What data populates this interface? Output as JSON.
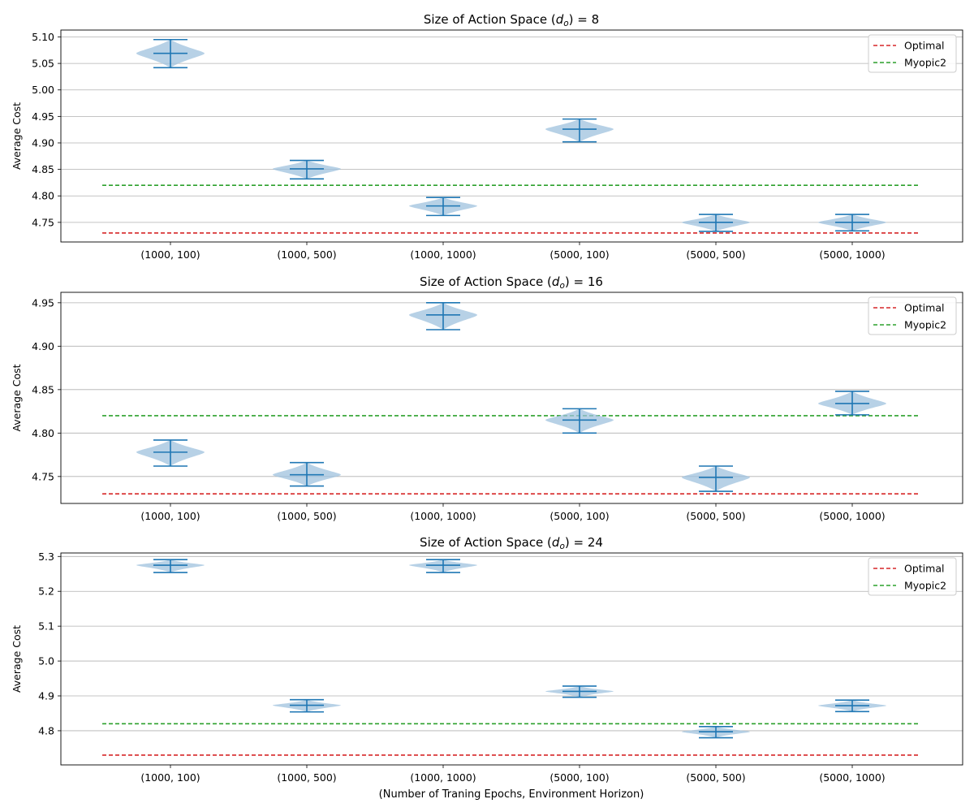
{
  "figure": {
    "xlabel": "(Number of Traning Epochs, Environment Horizon)"
  },
  "chart_data": [
    {
      "type": "violin",
      "title_prefix": "Size of Action Space (",
      "title_symbol": "d",
      "title_subscript": "o",
      "title_suffix": ") = 8",
      "ylabel": "Average Cost",
      "ylim": [
        4.713,
        5.113
      ],
      "yticks": [
        "4.75",
        "4.80",
        "4.85",
        "4.90",
        "4.95",
        "5.00",
        "5.05",
        "5.10"
      ],
      "grid": "horizontal",
      "legend_position": "top-right",
      "categories": [
        "(1000, 100)",
        "(1000, 500)",
        "(1000, 1000)",
        "(5000, 100)",
        "(5000, 500)",
        "(5000, 1000)"
      ],
      "distributions": [
        {
          "min": 5.042,
          "median": 5.069,
          "max": 5.095,
          "mode": 5.069,
          "spread": 0.7
        },
        {
          "min": 4.832,
          "median": 4.851,
          "max": 4.867,
          "mode": 4.851,
          "spread": 0.7
        },
        {
          "min": 4.763,
          "median": 4.781,
          "max": 4.797,
          "mode": 4.781,
          "spread": 0.7
        },
        {
          "min": 4.902,
          "median": 4.926,
          "max": 4.945,
          "mode": 4.926,
          "spread": 0.7
        },
        {
          "min": 4.733,
          "median": 4.75,
          "max": 4.765,
          "mode": 4.75,
          "spread": 0.7
        },
        {
          "min": 4.734,
          "median": 4.75,
          "max": 4.765,
          "mode": 4.75,
          "spread": 0.7
        }
      ],
      "reference_lines": [
        {
          "name": "Optimal",
          "value": 4.73,
          "color": "#d62728"
        },
        {
          "name": "Myopic2",
          "value": 4.82,
          "color": "#2ca02c"
        }
      ]
    },
    {
      "type": "violin",
      "title_prefix": "Size of Action Space (",
      "title_symbol": "d",
      "title_subscript": "o",
      "title_suffix": ") = 16",
      "ylabel": "Average Cost",
      "ylim": [
        4.719,
        4.962
      ],
      "yticks": [
        "4.75",
        "4.80",
        "4.85",
        "4.90",
        "4.95"
      ],
      "grid": "horizontal",
      "legend_position": "top-right",
      "categories": [
        "(1000, 100)",
        "(1000, 500)",
        "(1000, 1000)",
        "(5000, 100)",
        "(5000, 500)",
        "(5000, 1000)"
      ],
      "distributions": [
        {
          "min": 4.762,
          "median": 4.778,
          "max": 4.792,
          "mode": 4.778,
          "spread": 0.6
        },
        {
          "min": 4.739,
          "median": 4.752,
          "max": 4.766,
          "mode": 4.752,
          "spread": 0.6
        },
        {
          "min": 4.919,
          "median": 4.936,
          "max": 4.95,
          "mode": 4.936,
          "spread": 0.6
        },
        {
          "min": 4.8,
          "median": 4.815,
          "max": 4.828,
          "mode": 4.815,
          "spread": 0.6
        },
        {
          "min": 4.733,
          "median": 4.749,
          "max": 4.762,
          "mode": 4.749,
          "spread": 0.6
        },
        {
          "min": 4.821,
          "median": 4.834,
          "max": 4.848,
          "mode": 4.834,
          "spread": 0.6
        }
      ],
      "reference_lines": [
        {
          "name": "Optimal",
          "value": 4.73,
          "color": "#d62728"
        },
        {
          "name": "Myopic2",
          "value": 4.82,
          "color": "#2ca02c"
        }
      ]
    },
    {
      "type": "violin",
      "title_prefix": "Size of Action Space (",
      "title_symbol": "d",
      "title_subscript": "o",
      "title_suffix": ") = 24",
      "ylabel": "Average Cost",
      "ylim": [
        4.702,
        5.31
      ],
      "yticks": [
        "4.8",
        "4.9",
        "5.0",
        "5.1",
        "5.2",
        "5.3"
      ],
      "grid": "horizontal",
      "legend_position": "top-right",
      "categories": [
        "(1000, 100)",
        "(1000, 500)",
        "(1000, 1000)",
        "(5000, 100)",
        "(5000, 500)",
        "(5000, 1000)"
      ],
      "distributions": [
        {
          "min": 5.254,
          "median": 5.275,
          "max": 5.291,
          "mode": 5.275,
          "spread": 0.25
        },
        {
          "min": 4.854,
          "median": 4.873,
          "max": 4.889,
          "mode": 4.873,
          "spread": 0.25
        },
        {
          "min": 5.254,
          "median": 5.275,
          "max": 5.291,
          "mode": 5.275,
          "spread": 0.25
        },
        {
          "min": 4.896,
          "median": 4.913,
          "max": 4.928,
          "mode": 4.913,
          "spread": 0.25
        },
        {
          "min": 4.78,
          "median": 4.797,
          "max": 4.812,
          "mode": 4.797,
          "spread": 0.25
        },
        {
          "min": 4.855,
          "median": 4.872,
          "max": 4.888,
          "mode": 4.872,
          "spread": 0.25
        }
      ],
      "reference_lines": [
        {
          "name": "Optimal",
          "value": 4.73,
          "color": "#d62728"
        },
        {
          "name": "Myopic2",
          "value": 4.82,
          "color": "#2ca02c"
        }
      ]
    }
  ],
  "colors": {
    "violin_fill": "#9fc2de",
    "violin_lines": "#1f77b4",
    "grid": "#b0b0b0"
  }
}
